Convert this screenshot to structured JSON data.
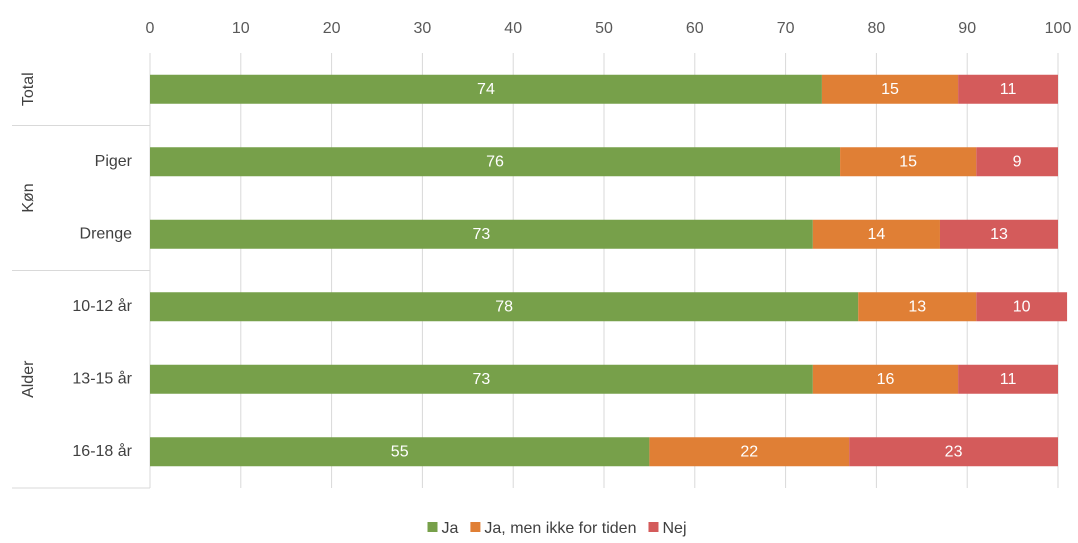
{
  "chart_data": {
    "type": "bar",
    "orientation": "horizontal",
    "stacked": true,
    "xlim": [
      0,
      100
    ],
    "xticks": [
      0,
      10,
      20,
      30,
      40,
      50,
      60,
      70,
      80,
      90,
      100
    ],
    "x_axis_position": "top",
    "grid": true,
    "legend_position": "bottom",
    "groups": [
      {
        "label": "Total",
        "categories": [
          ""
        ]
      },
      {
        "label": "Køn",
        "categories": [
          "Piger",
          "Drenge"
        ]
      },
      {
        "label": "Alder",
        "categories": [
          "10-12 år",
          "13-15 år",
          "16-18 år"
        ]
      }
    ],
    "categories": [
      "",
      "Piger",
      "Drenge",
      "10-12 år",
      "13-15 år",
      "16-18 år"
    ],
    "series": [
      {
        "name": "Ja",
        "color": "#77a04a",
        "values": [
          74,
          76,
          73,
          78,
          73,
          55
        ]
      },
      {
        "name": "Ja, men ikke for tiden",
        "color": "#e07f35",
        "values": [
          15,
          15,
          14,
          13,
          16,
          22
        ]
      },
      {
        "name": "Nej",
        "color": "#d45b5b",
        "values": [
          11,
          9,
          13,
          10,
          11,
          23
        ]
      }
    ]
  }
}
